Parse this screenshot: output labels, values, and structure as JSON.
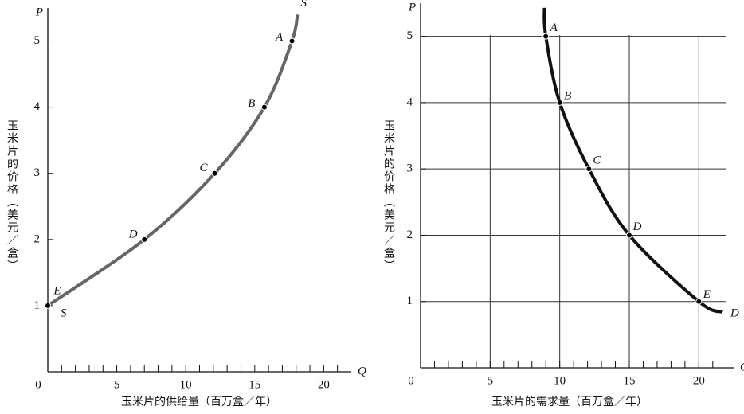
{
  "chart_data": [
    {
      "type": "line",
      "y_label": "P",
      "x_label": "Q",
      "y_title": "玉米片的价格（美元／盒）",
      "x_title": "玉米片的供给量（百万盒／年）",
      "xlim": [
        0,
        22
      ],
      "ylim": [
        0,
        5.5
      ],
      "xticks": [
        0,
        5,
        10,
        15,
        20
      ],
      "yticks": [
        1,
        2,
        3,
        4,
        5
      ],
      "x_minor_ticks": [
        1,
        2,
        3,
        4,
        6,
        7,
        8,
        9,
        11,
        12,
        13,
        14,
        16,
        17,
        18,
        19,
        21
      ],
      "grid": false,
      "series": [
        {
          "name": "S",
          "color": "#666666",
          "x": [
            0,
            7,
            12.1,
            15.7,
            17.7,
            18.1
          ],
          "values": [
            1,
            2,
            3,
            4,
            5,
            5.4
          ]
        }
      ],
      "points": {
        "labels": [
          "A",
          "B",
          "C",
          "D",
          "E"
        ],
        "x": [
          17.7,
          15.7,
          12.1,
          7,
          0
        ],
        "values": [
          5,
          4,
          3,
          2,
          1
        ]
      }
    },
    {
      "type": "line",
      "y_label": "P",
      "x_label": "Q",
      "y_title": "玉米片的价格（美元／盒）",
      "x_title": "玉米片的需求量（百万盒／年）",
      "xlim": [
        0,
        22.5
      ],
      "ylim": [
        0,
        5.5
      ],
      "xticks": [
        0,
        5,
        10,
        15,
        20
      ],
      "yticks": [
        1,
        2,
        3,
        4,
        5
      ],
      "x_minor_ticks": [
        1,
        2,
        3,
        4,
        6,
        7,
        8,
        9,
        11,
        12,
        13,
        14,
        16,
        17,
        18,
        19,
        21
      ],
      "grid": true,
      "series": [
        {
          "name": "D",
          "color": "#111111",
          "x": [
            8.9,
            9,
            10,
            12.1,
            15,
            20,
            21.7
          ],
          "values": [
            5.43,
            5,
            4,
            3,
            2,
            1,
            0.84
          ]
        }
      ],
      "points": {
        "labels": [
          "A",
          "B",
          "C",
          "D",
          "E"
        ],
        "x": [
          9,
          10,
          12.1,
          15,
          20
        ],
        "values": [
          5,
          4,
          3,
          2,
          1
        ]
      }
    }
  ]
}
